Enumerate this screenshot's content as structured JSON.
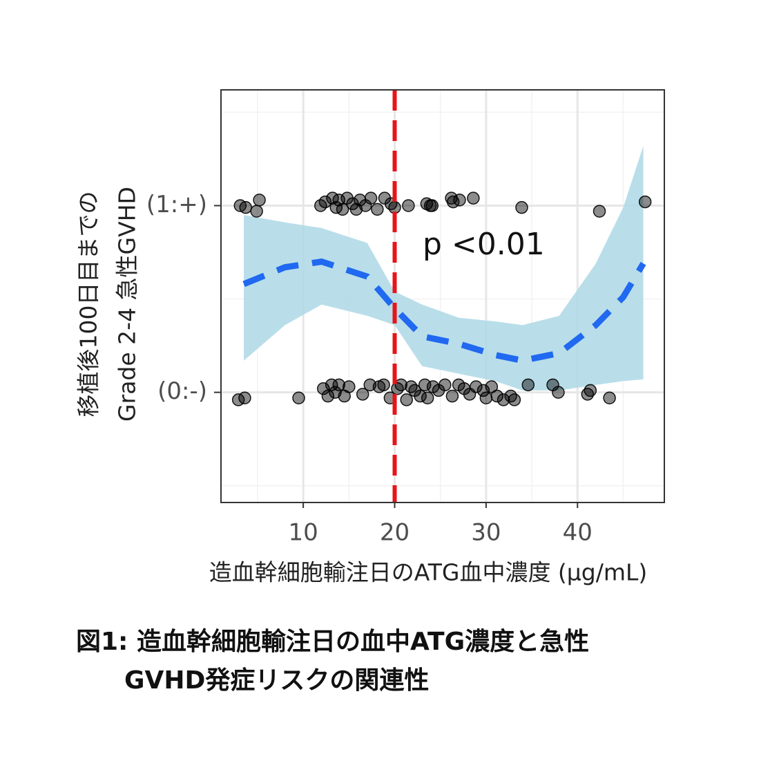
{
  "chart_data": {
    "type": "scatter",
    "caption": [
      "図1: 造血幹細胞輸注日の血中ATG濃度と急性",
      "GVHD発症リスクの関連性"
    ],
    "x_label": "造血幹細胞輸注日のATG血中濃度 (μg/mL)",
    "y_label": [
      "移植後100日目までの",
      "Grade 2-4 急性GVHD"
    ],
    "annotation": "p <0.01",
    "xlim": [
      1,
      49.5
    ],
    "ylim": [
      -0.59,
      1.62
    ],
    "xticks": [
      10,
      20,
      30,
      40
    ],
    "yticks": [
      {
        "value": 0,
        "label": "(0:-)"
      },
      {
        "value": 1,
        "label": "(1:+)"
      }
    ],
    "xminor": [
      5,
      15,
      25,
      35,
      45
    ],
    "yminor": [
      -0.5,
      0.5,
      1.5
    ],
    "grid": true,
    "vline": 20,
    "vline_color": "#e8141a",
    "points": {
      "color": "#000000",
      "x": [
        3.1,
        3.7,
        4.9,
        5.2,
        11.9,
        12.4,
        13.2,
        13.6,
        13.9,
        14.3,
        14.8,
        15.4,
        15.8,
        16.2,
        16.8,
        17.4,
        18.1,
        18.9,
        19.6,
        20.0,
        21.5,
        23.5,
        23.9,
        24.1,
        26.2,
        26.4,
        27.1,
        28.6,
        33.9,
        42.4,
        47.4,
        2.9,
        3.6,
        9.5,
        12.2,
        12.7,
        13.1,
        13.5,
        13.9,
        14.5,
        15.0,
        16.5,
        17.3,
        18.3,
        18.8,
        19.5,
        20.3,
        20.7,
        21.3,
        21.8,
        22.2,
        22.8,
        23.3,
        23.6,
        24.2,
        24.8,
        25.5,
        26.3,
        27.0,
        27.6,
        28.2,
        28.9,
        29.7,
        30.0,
        30.6,
        31.2,
        31.9,
        32.7,
        33.1,
        34.6,
        37.3,
        37.9,
        41.1,
        41.4,
        43.5
      ],
      "y": [
        1.0,
        0.99,
        0.97,
        1.03,
        1.0,
        1.02,
        1.04,
        0.99,
        1.03,
        0.98,
        1.04,
        1.01,
        0.98,
        1.03,
        1.0,
        1.04,
        0.98,
        1.04,
        1.01,
        0.99,
        1.0,
        1.01,
        1.0,
        1.0,
        1.04,
        1.02,
        1.03,
        1.04,
        0.99,
        0.97,
        1.02,
        -0.04,
        -0.03,
        -0.03,
        0.02,
        -0.02,
        0.04,
        0.0,
        0.04,
        -0.02,
        0.03,
        -0.01,
        0.04,
        0.03,
        0.04,
        -0.03,
        0.02,
        0.04,
        -0.04,
        0.03,
        0.01,
        -0.02,
        0.04,
        -0.03,
        0.03,
        0.01,
        0.04,
        -0.02,
        0.04,
        0.02,
        -0.01,
        0.03,
        0.01,
        -0.03,
        0.03,
        -0.02,
        -0.04,
        -0.02,
        -0.04,
        0.04,
        0.04,
        0.0,
        -0.01,
        0.01,
        -0.03
      ]
    },
    "fit": {
      "color": "#2069f0",
      "band_color": "#add8e6",
      "x": [
        3.5,
        8,
        12,
        17,
        20,
        23,
        27,
        31,
        34,
        38,
        42,
        45,
        47.2
      ],
      "y": [
        0.58,
        0.67,
        0.7,
        0.62,
        0.45,
        0.3,
        0.26,
        0.2,
        0.17,
        0.21,
        0.36,
        0.51,
        0.69
      ],
      "lower": [
        0.17,
        0.36,
        0.47,
        0.41,
        0.36,
        0.14,
        0.1,
        0.06,
        0.01,
        0.01,
        0.04,
        0.06,
        0.07
      ],
      "upper": [
        0.95,
        0.91,
        0.88,
        0.8,
        0.54,
        0.47,
        0.4,
        0.38,
        0.36,
        0.41,
        0.69,
        0.99,
        1.32
      ]
    }
  }
}
